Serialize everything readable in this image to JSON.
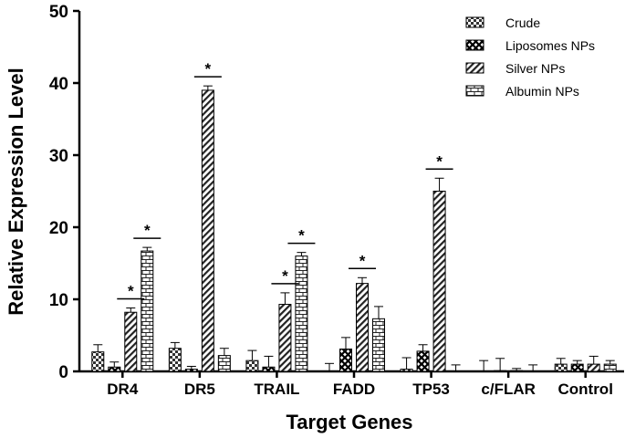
{
  "chart_data": {
    "type": "bar",
    "title": "",
    "xlabel": "Target Genes",
    "ylabel": "Relative Expression Level",
    "ylim": [
      0,
      50
    ],
    "yticks": [
      "0",
      "10",
      "20",
      "30",
      "40",
      "50"
    ],
    "categories": [
      "DR4",
      "DR5",
      "TRAIL",
      "FADD",
      "TP53",
      "c/FLAR",
      "Control"
    ],
    "series": [
      {
        "name": "Crude",
        "pattern": "checker",
        "values": [
          2.7,
          3.2,
          1.5,
          0.0,
          0.3,
          0.0,
          1.0
        ],
        "errors": [
          1.0,
          0.8,
          1.4,
          1.1,
          1.6,
          1.5,
          0.8
        ]
      },
      {
        "name": "Liposomes NPs",
        "pattern": "cross",
        "values": [
          0.6,
          0.3,
          0.6,
          3.1,
          2.8,
          0.1,
          1.0
        ],
        "errors": [
          0.7,
          0.4,
          1.5,
          1.6,
          0.9,
          1.7,
          0.5
        ]
      },
      {
        "name": "Silver NPs",
        "pattern": "diagonal",
        "values": [
          8.2,
          39.0,
          9.3,
          12.2,
          25.0,
          0.1,
          1.0
        ],
        "errors": [
          0.6,
          0.6,
          1.6,
          0.8,
          1.8,
          0.3,
          1.1
        ]
      },
      {
        "name": "Albumin NPs",
        "pattern": "brick",
        "values": [
          16.7,
          2.2,
          16.0,
          7.3,
          0.0,
          0.0,
          1.0
        ],
        "errors": [
          0.5,
          1.0,
          0.5,
          1.7,
          0.9,
          0.9,
          0.5
        ]
      }
    ],
    "significance_marker": "*",
    "significant": [
      {
        "category": "DR4",
        "series": "Silver NPs"
      },
      {
        "category": "DR4",
        "series": "Albumin NPs"
      },
      {
        "category": "DR5",
        "series": "Silver NPs"
      },
      {
        "category": "TRAIL",
        "series": "Silver NPs"
      },
      {
        "category": "TRAIL",
        "series": "Albumin NPs"
      },
      {
        "category": "FADD",
        "series": "Silver NPs"
      },
      {
        "category": "TP53",
        "series": "Silver NPs"
      }
    ],
    "legend_position": "top-right",
    "grid": false
  }
}
